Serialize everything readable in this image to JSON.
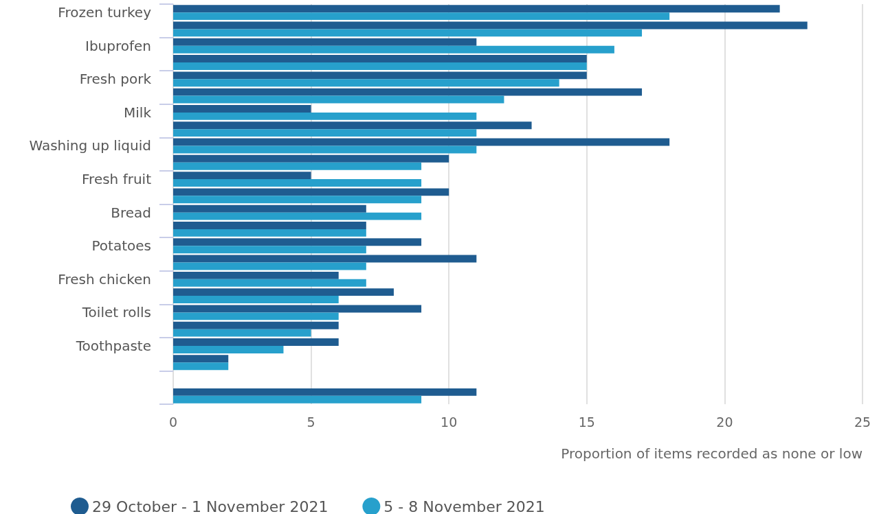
{
  "chart_data": {
    "type": "bar",
    "orientation": "horizontal",
    "xlabel": "Proportion of items recorded as none or low",
    "categories": [
      "Frozen turkey",
      null,
      "Ibuprofen",
      null,
      "Fresh pork",
      null,
      "Milk",
      null,
      "Washing up liquid",
      null,
      "Fresh fruit",
      null,
      "Bread",
      null,
      "Potatoes",
      null,
      "Fresh chicken",
      null,
      "Toilet rolls",
      null,
      "Toothpaste",
      null,
      null,
      null
    ],
    "series": [
      {
        "name": "29 October - 1 November 2021",
        "color": "#1f5c90",
        "values": [
          22,
          23,
          11,
          15,
          15,
          17,
          5,
          13,
          18,
          10,
          5,
          10,
          7,
          7,
          9,
          11,
          6,
          8,
          9,
          6,
          6,
          2,
          null,
          11
        ]
      },
      {
        "name": "5 - 8 November 2021",
        "color": "#27a0cc",
        "values": [
          18,
          17,
          16,
          15,
          14,
          12,
          11,
          11,
          11,
          9,
          9,
          9,
          9,
          7,
          7,
          7,
          7,
          6,
          6,
          5,
          4,
          2,
          null,
          9
        ]
      }
    ],
    "xlim": [
      0,
      25
    ],
    "xticks": [
      0,
      5,
      10,
      15,
      20,
      25
    ],
    "grid": "x",
    "legend": "bottom left"
  }
}
